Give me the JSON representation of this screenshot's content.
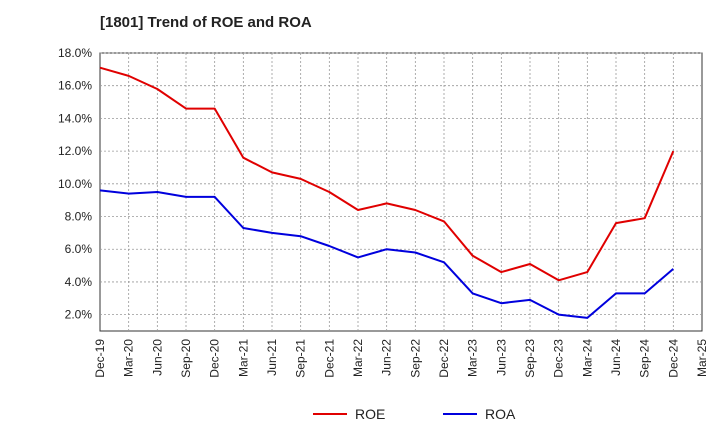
{
  "chart_data": {
    "type": "line",
    "title": "[1801]  Trend of ROE and ROA",
    "xlabel": "",
    "ylabel": "",
    "ylim": [
      1.0,
      18.0
    ],
    "y_ticks": [
      "2.0%",
      "4.0%",
      "6.0%",
      "8.0%",
      "10.0%",
      "12.0%",
      "14.0%",
      "16.0%",
      "18.0%"
    ],
    "y_tick_values": [
      2,
      4,
      6,
      8,
      10,
      12,
      14,
      16,
      18
    ],
    "categories": [
      "Dec-19",
      "Mar-20",
      "Jun-20",
      "Sep-20",
      "Dec-20",
      "Mar-21",
      "Jun-21",
      "Sep-21",
      "Dec-21",
      "Mar-22",
      "Jun-22",
      "Sep-22",
      "Dec-22",
      "Mar-23",
      "Jun-23",
      "Sep-23",
      "Dec-23",
      "Mar-24",
      "Jun-24",
      "Sep-24",
      "Dec-24",
      "Mar-25"
    ],
    "grid": true,
    "legend_position": "bottom-center",
    "series": [
      {
        "name": "ROE",
        "color": "#e00000",
        "values": [
          17.1,
          16.6,
          15.8,
          14.6,
          14.6,
          11.6,
          10.7,
          10.3,
          9.5,
          8.4,
          8.8,
          8.4,
          7.7,
          5.6,
          4.6,
          5.1,
          4.1,
          4.6,
          7.6,
          7.9,
          12.0,
          null
        ]
      },
      {
        "name": "ROA",
        "color": "#0000dd",
        "values": [
          9.6,
          9.4,
          9.5,
          9.2,
          9.2,
          7.3,
          7.0,
          6.8,
          6.2,
          5.5,
          6.0,
          5.8,
          5.2,
          3.3,
          2.7,
          2.9,
          2.0,
          1.8,
          3.3,
          3.3,
          4.8,
          null
        ]
      }
    ]
  }
}
